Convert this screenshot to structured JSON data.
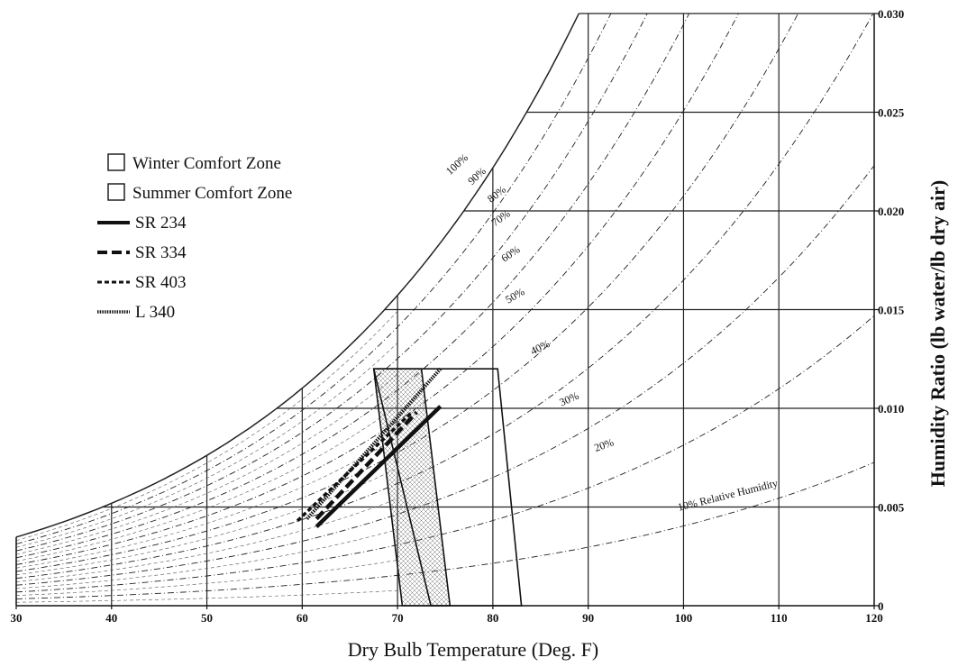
{
  "chart_data": {
    "type": "line",
    "xlabel": "Dry Bulb Temperature (Deg. F)",
    "ylabel": "Humidity Ratio (lb water/lb dry air)",
    "xlim": [
      30,
      120
    ],
    "ylim": [
      0,
      0.03
    ],
    "x_ticks": [
      "30",
      "40",
      "50",
      "60",
      "70",
      "80",
      "90",
      "100",
      "110",
      "120"
    ],
    "y_ticks": [
      "0",
      "0.005",
      "0.010",
      "0.015",
      "0.020",
      "0.025",
      "0.030"
    ],
    "y_tick_values": [
      0,
      0.005,
      0.01,
      0.015,
      0.02,
      0.025,
      0.03
    ],
    "grid": true,
    "rh_curves": [
      {
        "rh": 100,
        "label": "100%"
      },
      {
        "rh": 90,
        "label": "90%"
      },
      {
        "rh": 80,
        "label": "80%"
      },
      {
        "rh": 70,
        "label": "70%"
      },
      {
        "rh": 60,
        "label": "60%"
      },
      {
        "rh": 50,
        "label": "50%"
      },
      {
        "rh": 40,
        "label": "40%"
      },
      {
        "rh": 30,
        "label": "30%"
      },
      {
        "rh": 20,
        "label": "20%"
      },
      {
        "rh": 10,
        "label": "10% Relative Humidity"
      }
    ],
    "zones": [
      {
        "name": "Winter Comfort Zone",
        "polygon": [
          [
            67.5,
            0.012
          ],
          [
            72.5,
            0.012
          ],
          [
            75.5,
            0
          ],
          [
            70.5,
            0
          ]
        ]
      },
      {
        "name": "Summer Comfort Zone",
        "polygon": [
          [
            67.5,
            0.012
          ],
          [
            80.5,
            0.012
          ],
          [
            83,
            0
          ],
          [
            73.5,
            0
          ]
        ]
      }
    ],
    "series": [
      {
        "name": "SR 234",
        "style": "solid",
        "x": [
          61.5,
          74.5
        ],
        "y": [
          0.004,
          0.0101
        ]
      },
      {
        "name": "SR 334",
        "style": "dash",
        "x": [
          61.5,
          72.0
        ],
        "y": [
          0.0044,
          0.0098
        ]
      },
      {
        "name": "SR 403",
        "style": "shortdash",
        "x": [
          59.5,
          71.5
        ],
        "y": [
          0.0043,
          0.0098
        ]
      },
      {
        "name": "L 340",
        "style": "dotted",
        "x": [
          60.5,
          74.5
        ],
        "y": [
          0.0044,
          0.012
        ]
      }
    ],
    "legend_position": "left"
  }
}
